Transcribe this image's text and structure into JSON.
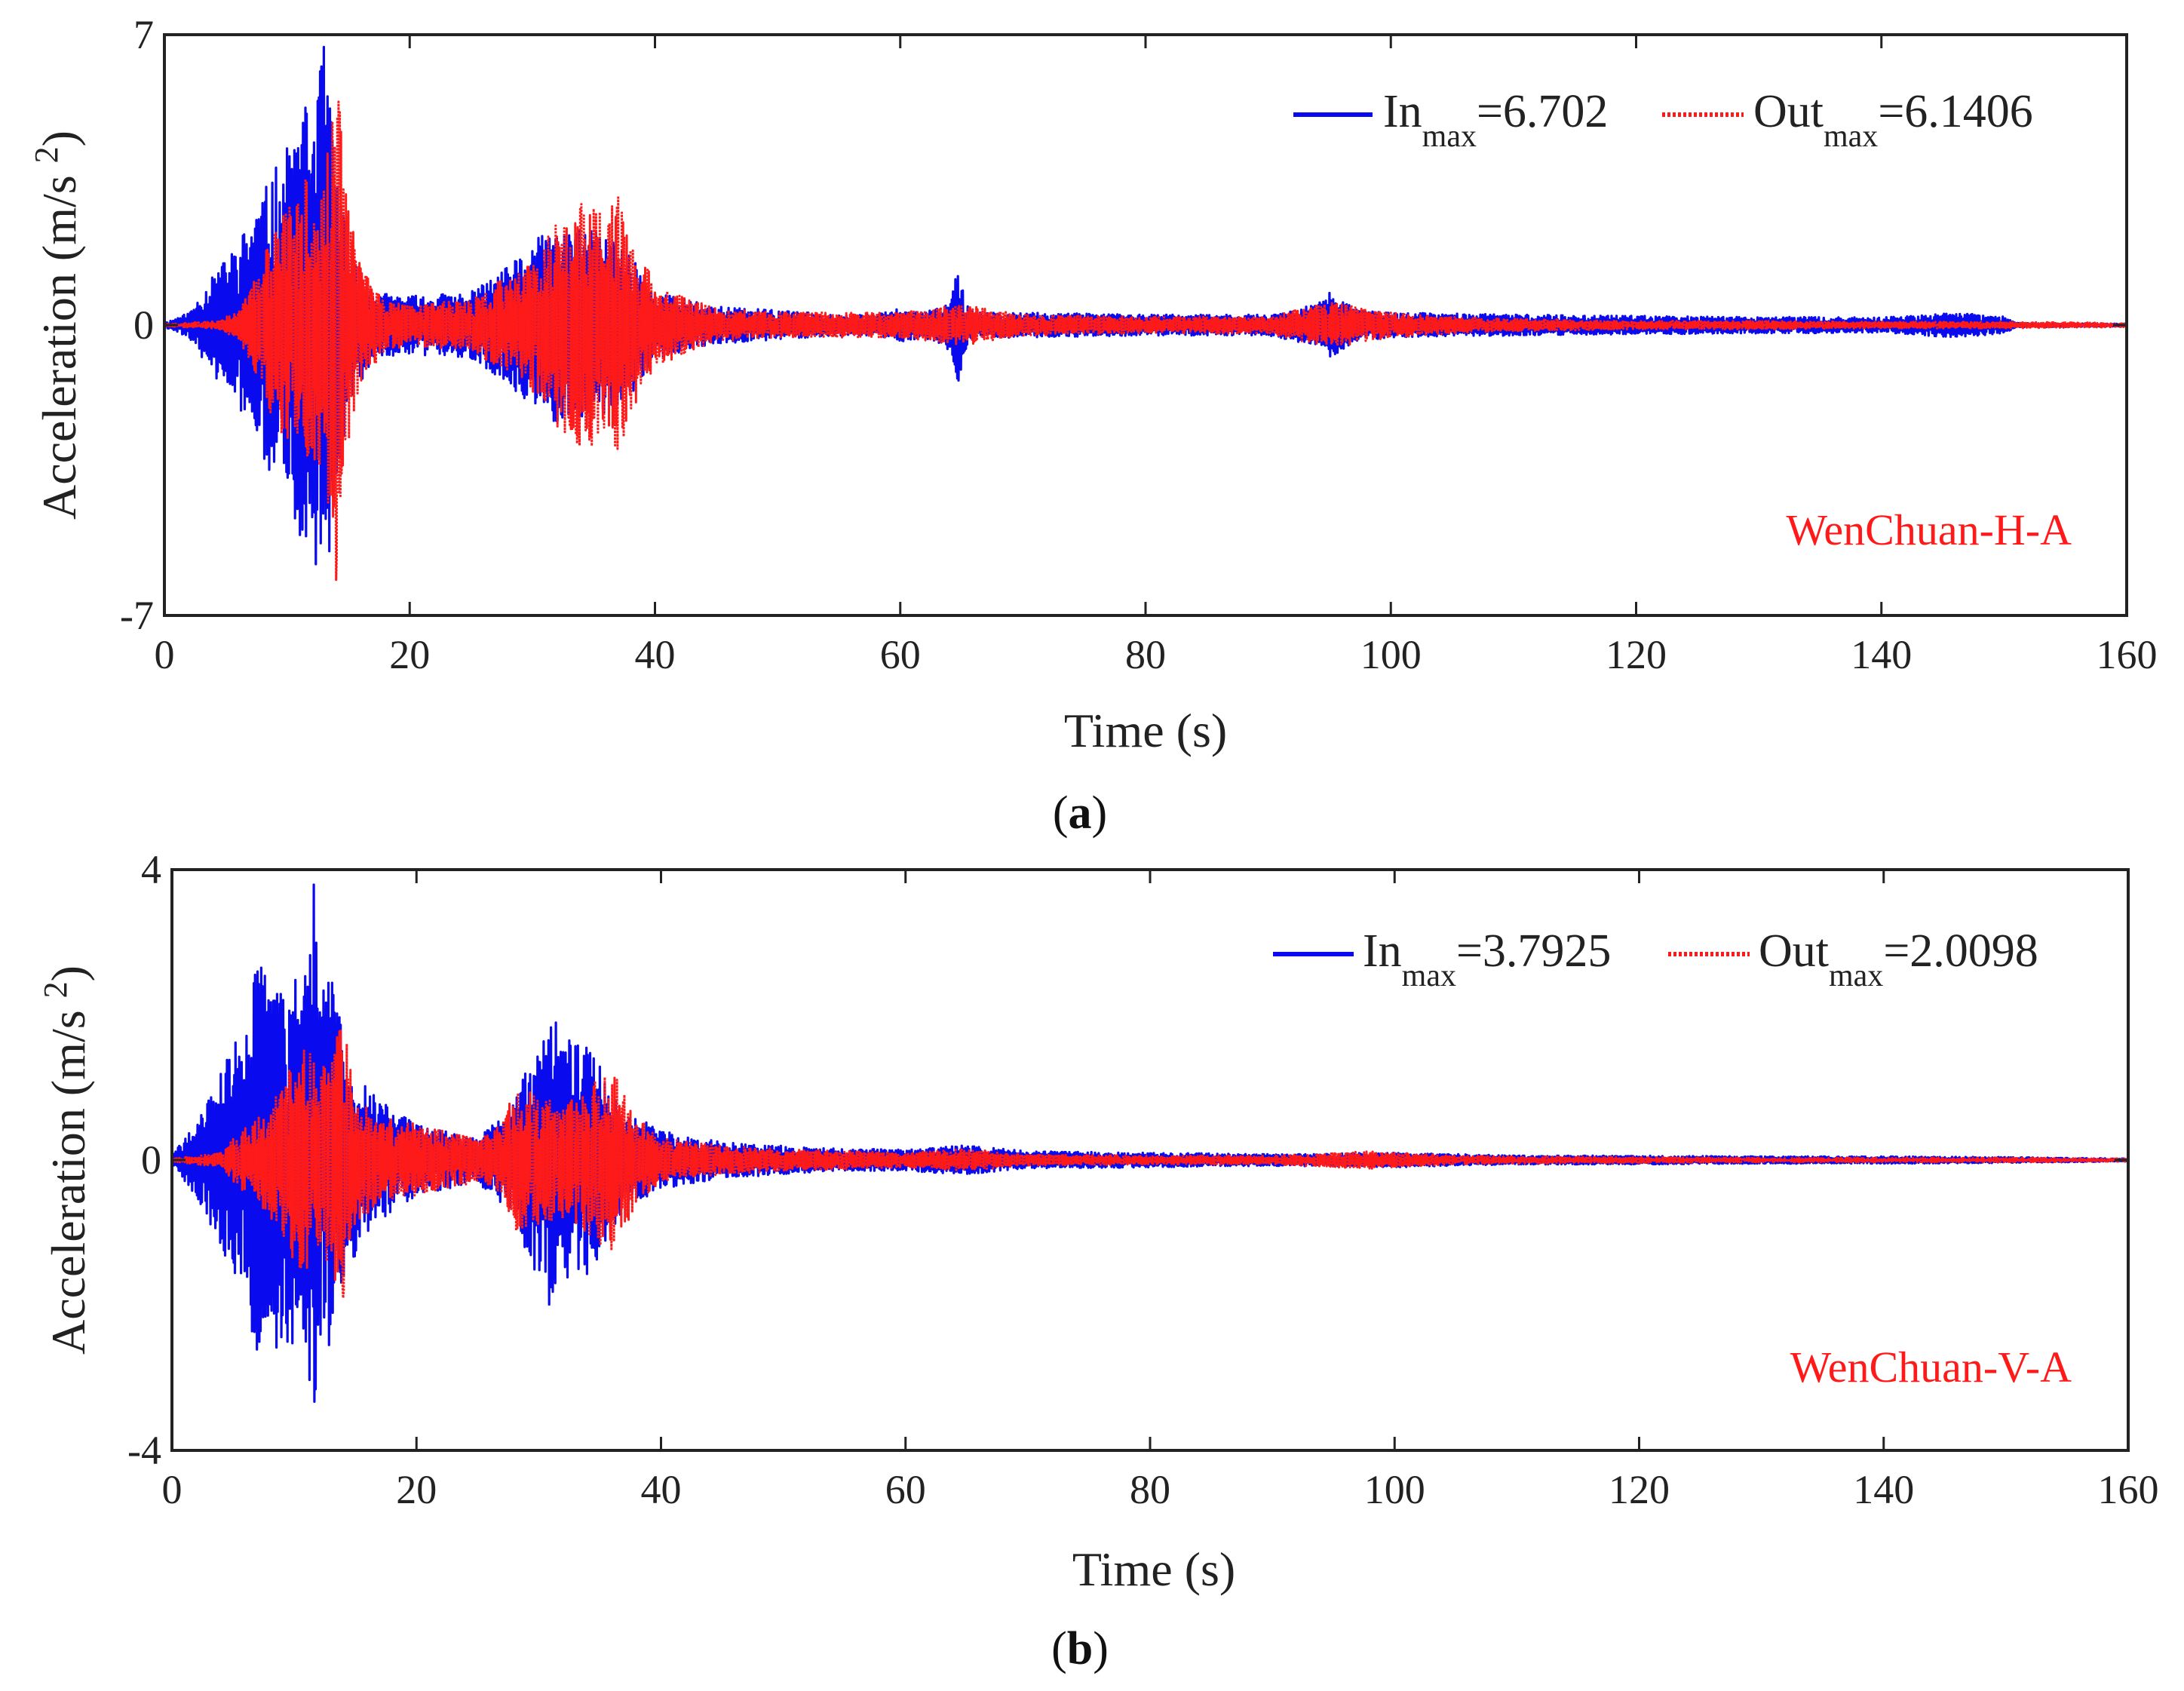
{
  "chart_data": [
    {
      "type": "line",
      "panel_label": "a",
      "xlabel": "Time (s)",
      "ylabel": "Acceleration (m/s2)",
      "xlim": [
        0,
        160
      ],
      "ylim": [
        -7,
        7
      ],
      "xticks": [
        0,
        20,
        40,
        60,
        80,
        100,
        120,
        140,
        160
      ],
      "yticks": [
        -7,
        0,
        7
      ],
      "grid": false,
      "legend_position": "top-right",
      "annotation": "WenChuan-H-A",
      "series": [
        {
          "name": "In",
          "legend_sub": "max",
          "legend_value": "=6.702",
          "color": "#0a0aee",
          "style": "solid",
          "peak": 6.702,
          "envelope": [
            [
              0,
              0.05
            ],
            [
              2,
              0.3
            ],
            [
              4,
              1.2
            ],
            [
              6,
              2.0
            ],
            [
              8,
              3.2
            ],
            [
              10,
              4.3
            ],
            [
              11,
              5.2
            ],
            [
              12,
              5.3
            ],
            [
              13,
              6.702
            ],
            [
              14,
              4.0
            ],
            [
              15,
              2.0
            ],
            [
              17,
              0.8
            ],
            [
              20,
              0.7
            ],
            [
              25,
              0.8
            ],
            [
              28,
              1.4
            ],
            [
              30,
              2.0
            ],
            [
              32,
              2.4
            ],
            [
              34,
              2.3
            ],
            [
              36,
              2.2
            ],
            [
              38,
              1.8
            ],
            [
              40,
              0.8
            ],
            [
              45,
              0.45
            ],
            [
              50,
              0.35
            ],
            [
              55,
              0.25
            ],
            [
              58,
              0.25
            ],
            [
              60,
              0.4
            ],
            [
              62,
              0.3
            ],
            [
              64,
              0.6
            ],
            [
              64.6,
              1.6
            ],
            [
              65.2,
              0.7
            ],
            [
              66,
              0.3
            ],
            [
              70,
              0.3
            ],
            [
              80,
              0.25
            ],
            [
              90,
              0.25
            ],
            [
              94,
              0.5
            ],
            [
              95,
              0.8
            ],
            [
              97,
              0.4
            ],
            [
              100,
              0.3
            ],
            [
              110,
              0.25
            ],
            [
              120,
              0.22
            ],
            [
              130,
              0.2
            ],
            [
              140,
              0.18
            ],
            [
              146,
              0.3
            ],
            [
              150,
              0.2
            ],
            [
              151,
              0.05
            ],
            [
              160,
              0.03
            ]
          ]
        },
        {
          "name": "Out",
          "legend_sub": "max",
          "legend_value": "=6.1406",
          "color": "#ff1a1a",
          "style": "dotted",
          "peak": 6.1406,
          "envelope": [
            [
              0,
              0.02
            ],
            [
              4,
              0.1
            ],
            [
              6,
              0.3
            ],
            [
              8,
              1.5
            ],
            [
              9,
              2.5
            ],
            [
              10,
              2.8
            ],
            [
              11,
              3.2
            ],
            [
              12,
              3.8
            ],
            [
              13,
              3.5
            ],
            [
              14,
              6.1406
            ],
            [
              15,
              2.8
            ],
            [
              16,
              1.5
            ],
            [
              18,
              0.6
            ],
            [
              20,
              0.5
            ],
            [
              25,
              0.6
            ],
            [
              28,
              1.2
            ],
            [
              30,
              1.6
            ],
            [
              32,
              2.5
            ],
            [
              34,
              3.0
            ],
            [
              36,
              2.8
            ],
            [
              37,
              3.2
            ],
            [
              38,
              2.2
            ],
            [
              40,
              1.0
            ],
            [
              45,
              0.4
            ],
            [
              50,
              0.3
            ],
            [
              55,
              0.3
            ],
            [
              60,
              0.3
            ],
            [
              65,
              0.5
            ],
            [
              70,
              0.25
            ],
            [
              80,
              0.2
            ],
            [
              90,
              0.2
            ],
            [
              95,
              0.55
            ],
            [
              100,
              0.3
            ],
            [
              105,
              0.2
            ],
            [
              110,
              0.15
            ],
            [
              120,
              0.1
            ],
            [
              130,
              0.1
            ],
            [
              140,
              0.08
            ],
            [
              150,
              0.08
            ],
            [
              160,
              0.05
            ]
          ]
        }
      ]
    },
    {
      "type": "line",
      "panel_label": "b",
      "xlabel": "Time (s)",
      "ylabel": "Acceleration (m/s2)",
      "xlim": [
        0,
        160
      ],
      "ylim": [
        -4,
        4
      ],
      "xticks": [
        0,
        20,
        40,
        60,
        80,
        100,
        120,
        140,
        160
      ],
      "yticks": [
        -4,
        0,
        4
      ],
      "grid": false,
      "legend_position": "top-right",
      "annotation": "WenChuan-V-A",
      "series": [
        {
          "name": "In",
          "legend_sub": "max",
          "legend_value": "=3.7925",
          "color": "#0a0aee",
          "style": "solid",
          "peak": 3.7925,
          "envelope": [
            [
              0,
              0.05
            ],
            [
              1,
              0.3
            ],
            [
              2,
              0.5
            ],
            [
              4,
              1.2
            ],
            [
              6,
              2.0
            ],
            [
              7,
              2.8
            ],
            [
              8,
              2.6
            ],
            [
              9,
              2.8
            ],
            [
              10,
              2.5
            ],
            [
              11,
              2.6
            ],
            [
              11.6,
              3.7925
            ],
            [
              12,
              2.4
            ],
            [
              13,
              2.6
            ],
            [
              14,
              1.8
            ],
            [
              16,
              1.0
            ],
            [
              18,
              0.7
            ],
            [
              20,
              0.5
            ],
            [
              25,
              0.3
            ],
            [
              28,
              0.8
            ],
            [
              30,
              1.8
            ],
            [
              31,
              2.1
            ],
            [
              32,
              1.7
            ],
            [
              34,
              1.6
            ],
            [
              35,
              1.3
            ],
            [
              37,
              0.7
            ],
            [
              40,
              0.4
            ],
            [
              45,
              0.25
            ],
            [
              50,
              0.2
            ],
            [
              55,
              0.15
            ],
            [
              60,
              0.15
            ],
            [
              65,
              0.2
            ],
            [
              70,
              0.12
            ],
            [
              80,
              0.1
            ],
            [
              90,
              0.08
            ],
            [
              100,
              0.1
            ],
            [
              110,
              0.06
            ],
            [
              120,
              0.06
            ],
            [
              130,
              0.05
            ],
            [
              140,
              0.05
            ],
            [
              150,
              0.04
            ],
            [
              160,
              0.02
            ]
          ]
        },
        {
          "name": "Out",
          "legend_sub": "max",
          "legend_value": "=2.0098",
          "color": "#ff1a1a",
          "style": "dotted",
          "peak": 2.0098,
          "envelope": [
            [
              0,
              0.02
            ],
            [
              4,
              0.1
            ],
            [
              5,
              0.3
            ],
            [
              7,
              0.6
            ],
            [
              9,
              1.0
            ],
            [
              10,
              1.4
            ],
            [
              11,
              1.6
            ],
            [
              12,
              1.2
            ],
            [
              13,
              1.5
            ],
            [
              14,
              2.0098
            ],
            [
              15,
              0.9
            ],
            [
              17,
              0.6
            ],
            [
              20,
              0.5
            ],
            [
              25,
              0.3
            ],
            [
              27,
              0.5
            ],
            [
              28,
              1.0
            ],
            [
              30,
              0.9
            ],
            [
              32,
              0.8
            ],
            [
              34,
              1.0
            ],
            [
              36,
              1.3
            ],
            [
              38,
              0.6
            ],
            [
              40,
              0.3
            ],
            [
              45,
              0.2
            ],
            [
              50,
              0.15
            ],
            [
              60,
              0.1
            ],
            [
              65,
              0.15
            ],
            [
              70,
              0.08
            ],
            [
              80,
              0.06
            ],
            [
              90,
              0.06
            ],
            [
              98,
              0.12
            ],
            [
              100,
              0.1
            ],
            [
              105,
              0.06
            ],
            [
              110,
              0.05
            ],
            [
              120,
              0.04
            ],
            [
              130,
              0.03
            ],
            [
              140,
              0.03
            ],
            [
              150,
              0.03
            ],
            [
              160,
              0.02
            ]
          ]
        }
      ]
    }
  ]
}
